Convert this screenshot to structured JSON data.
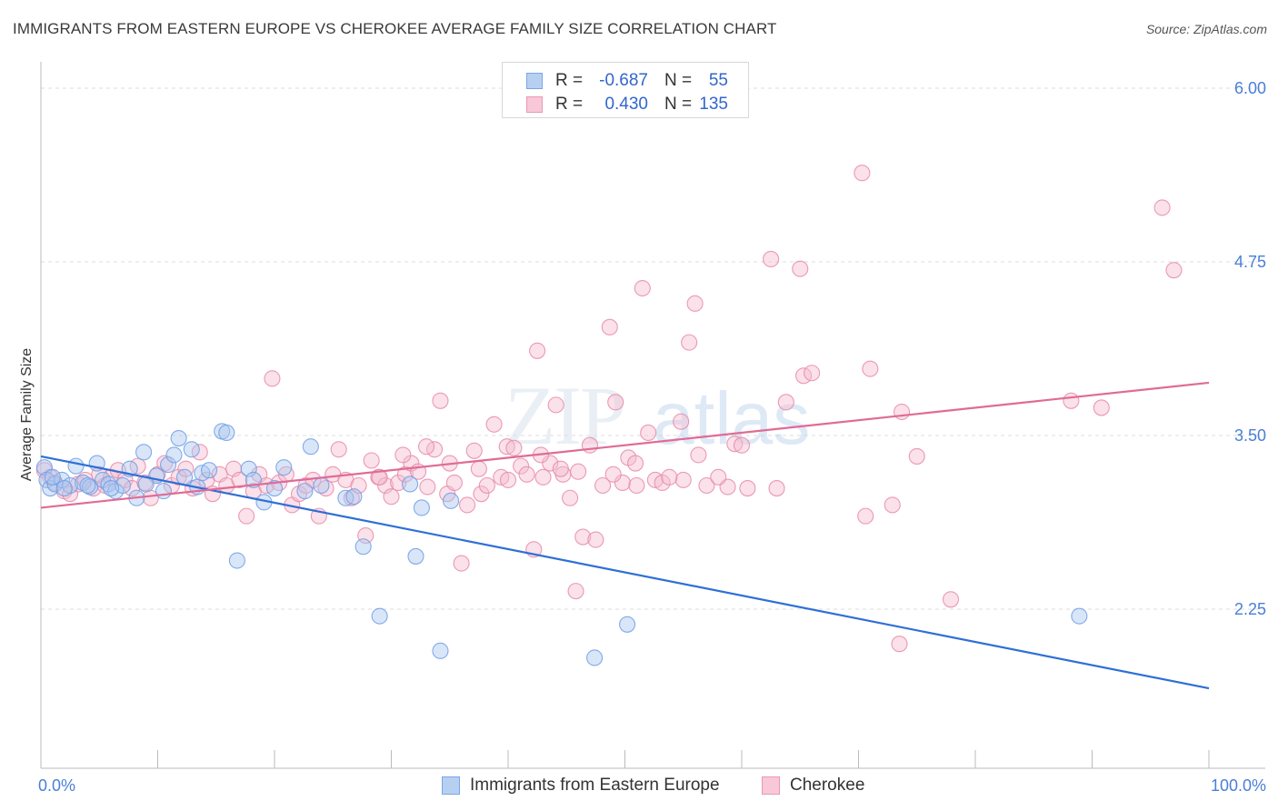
{
  "title": "IMMIGRANTS FROM EASTERN EUROPE VS CHEROKEE AVERAGE FAMILY SIZE CORRELATION CHART",
  "source": "Source: ZipAtlas.com",
  "watermark": {
    "zip": "ZIP",
    "atlas": "atlas"
  },
  "colors": {
    "blue_fill": "#aac8f0",
    "blue_stroke": "#6d9ee6",
    "blue_line": "#2e6fd6",
    "pink_fill": "#f5bcd0",
    "pink_stroke": "#e889a8",
    "pink_line": "#e06b95",
    "grid": "#dddddd",
    "axis_text": "#4a7fd6"
  },
  "stats": [
    {
      "r_label": "R =",
      "r_value": "-0.687",
      "n_label": "N =",
      "n_value": "55",
      "color": "blue"
    },
    {
      "r_label": "R =",
      "r_value": "0.430",
      "n_label": "N =",
      "n_value": "135",
      "color": "pink"
    }
  ],
  "legend": [
    {
      "label": "Immigrants from Eastern Europe",
      "color": "blue"
    },
    {
      "label": "Cherokee",
      "color": "pink"
    }
  ],
  "chart_data": {
    "type": "scatter",
    "title": "IMMIGRANTS FROM EASTERN EUROPE VS CHEROKEE AVERAGE FAMILY SIZE CORRELATION CHART",
    "xlabel": "",
    "ylabel": "Average Family Size",
    "xlim": [
      0,
      100
    ],
    "ylim": [
      1.0,
      6.2
    ],
    "x_tick_labels": [
      "0.0%",
      "100.0%"
    ],
    "y_ticks": [
      2.25,
      3.5,
      4.75,
      6.0
    ],
    "y_tick_labels": [
      "2.25",
      "3.50",
      "4.75",
      "6.00"
    ],
    "grid": true,
    "legend_position": "bottom-center",
    "series": [
      {
        "name": "Immigrants from Eastern Europe",
        "color": "blue",
        "trend": {
          "x": [
            0,
            100
          ],
          "y": [
            3.35,
            1.68
          ]
        },
        "points": [
          [
            0.3,
            3.27
          ],
          [
            0.5,
            3.18
          ],
          [
            0.8,
            3.12
          ],
          [
            1.2,
            3.15
          ],
          [
            1.8,
            3.18
          ],
          [
            2.5,
            3.14
          ],
          [
            3.0,
            3.28
          ],
          [
            3.6,
            3.16
          ],
          [
            4.2,
            3.13
          ],
          [
            4.8,
            3.3
          ],
          [
            5.3,
            3.18
          ],
          [
            5.8,
            3.15
          ],
          [
            6.4,
            3.1
          ],
          [
            7.0,
            3.14
          ],
          [
            7.6,
            3.26
          ],
          [
            8.2,
            3.05
          ],
          [
            8.8,
            3.38
          ],
          [
            9.9,
            3.21
          ],
          [
            10.9,
            3.29
          ],
          [
            11.4,
            3.36
          ],
          [
            11.8,
            3.48
          ],
          [
            12.3,
            3.2
          ],
          [
            12.9,
            3.4
          ],
          [
            13.4,
            3.13
          ],
          [
            13.8,
            3.23
          ],
          [
            14.4,
            3.25
          ],
          [
            15.5,
            3.53
          ],
          [
            15.9,
            3.52
          ],
          [
            16.8,
            2.6
          ],
          [
            17.8,
            3.26
          ],
          [
            18.2,
            3.18
          ],
          [
            19.1,
            3.02
          ],
          [
            20.8,
            3.27
          ],
          [
            22.6,
            3.1
          ],
          [
            23.1,
            3.42
          ],
          [
            26.1,
            3.05
          ],
          [
            26.8,
            3.06
          ],
          [
            27.6,
            2.7
          ],
          [
            29.0,
            2.2
          ],
          [
            31.6,
            3.15
          ],
          [
            32.1,
            2.63
          ],
          [
            32.6,
            2.98
          ],
          [
            34.2,
            1.95
          ],
          [
            35.1,
            3.03
          ],
          [
            47.4,
            1.9
          ],
          [
            50.2,
            2.14
          ],
          [
            88.9,
            2.2
          ],
          [
            1.0,
            3.2
          ],
          [
            2.0,
            3.12
          ],
          [
            4.0,
            3.14
          ],
          [
            6.0,
            3.12
          ],
          [
            9.0,
            3.15
          ],
          [
            10.5,
            3.1
          ],
          [
            20.0,
            3.12
          ],
          [
            24.0,
            3.14
          ]
        ]
      },
      {
        "name": "Cherokee",
        "color": "pink",
        "trend": {
          "x": [
            0,
            100
          ],
          "y": [
            2.98,
            3.88
          ]
        },
        "points": [
          [
            0.3,
            3.25
          ],
          [
            0.8,
            3.2
          ],
          [
            1.2,
            3.16
          ],
          [
            2.0,
            3.1
          ],
          [
            2.5,
            3.08
          ],
          [
            3.2,
            3.15
          ],
          [
            3.8,
            3.18
          ],
          [
            4.5,
            3.12
          ],
          [
            5.0,
            3.22
          ],
          [
            5.5,
            3.14
          ],
          [
            6.0,
            3.2
          ],
          [
            6.6,
            3.25
          ],
          [
            7.2,
            3.18
          ],
          [
            7.8,
            3.12
          ],
          [
            8.3,
            3.28
          ],
          [
            8.9,
            3.16
          ],
          [
            9.4,
            3.05
          ],
          [
            10.0,
            3.22
          ],
          [
            10.6,
            3.3
          ],
          [
            11.2,
            3.14
          ],
          [
            11.8,
            3.2
          ],
          [
            12.4,
            3.26
          ],
          [
            13.0,
            3.12
          ],
          [
            13.6,
            3.38
          ],
          [
            14.2,
            3.18
          ],
          [
            14.7,
            3.08
          ],
          [
            15.3,
            3.22
          ],
          [
            15.9,
            3.14
          ],
          [
            16.5,
            3.26
          ],
          [
            17.0,
            3.18
          ],
          [
            17.6,
            2.92
          ],
          [
            18.2,
            3.1
          ],
          [
            18.7,
            3.22
          ],
          [
            19.3,
            3.14
          ],
          [
            19.8,
            3.91
          ],
          [
            20.4,
            3.16
          ],
          [
            21.0,
            3.22
          ],
          [
            21.5,
            3.0
          ],
          [
            22.1,
            3.08
          ],
          [
            22.7,
            3.14
          ],
          [
            23.3,
            3.18
          ],
          [
            23.8,
            2.92
          ],
          [
            24.4,
            3.12
          ],
          [
            25.0,
            3.22
          ],
          [
            25.5,
            3.4
          ],
          [
            26.1,
            3.18
          ],
          [
            26.6,
            3.05
          ],
          [
            27.2,
            3.14
          ],
          [
            27.8,
            2.78
          ],
          [
            28.3,
            3.32
          ],
          [
            28.9,
            3.2
          ],
          [
            29.5,
            3.14
          ],
          [
            30.0,
            3.06
          ],
          [
            30.6,
            3.16
          ],
          [
            31.2,
            3.22
          ],
          [
            31.7,
            3.3
          ],
          [
            32.3,
            3.24
          ],
          [
            33.1,
            3.13
          ],
          [
            33.7,
            3.4
          ],
          [
            34.2,
            3.75
          ],
          [
            34.8,
            3.08
          ],
          [
            35.4,
            3.16
          ],
          [
            36.0,
            2.58
          ],
          [
            36.5,
            3.0
          ],
          [
            37.1,
            3.39
          ],
          [
            37.7,
            3.08
          ],
          [
            38.2,
            3.14
          ],
          [
            38.8,
            3.58
          ],
          [
            39.4,
            3.2
          ],
          [
            39.9,
            3.42
          ],
          [
            40.5,
            3.41
          ],
          [
            41.1,
            3.28
          ],
          [
            41.6,
            3.22
          ],
          [
            42.2,
            2.68
          ],
          [
            42.5,
            4.11
          ],
          [
            43.0,
            3.2
          ],
          [
            43.6,
            3.3
          ],
          [
            44.1,
            3.72
          ],
          [
            44.7,
            3.22
          ],
          [
            45.3,
            3.05
          ],
          [
            45.8,
            2.38
          ],
          [
            46.4,
            2.77
          ],
          [
            47.0,
            3.43
          ],
          [
            47.5,
            2.75
          ],
          [
            48.1,
            3.14
          ],
          [
            48.7,
            4.28
          ],
          [
            49.2,
            3.74
          ],
          [
            49.8,
            3.16
          ],
          [
            50.3,
            3.34
          ],
          [
            50.9,
            3.3
          ],
          [
            51.5,
            4.56
          ],
          [
            52.0,
            3.52
          ],
          [
            52.6,
            3.18
          ],
          [
            53.2,
            3.16
          ],
          [
            54.8,
            3.6
          ],
          [
            55.5,
            4.17
          ],
          [
            56.0,
            4.45
          ],
          [
            56.3,
            3.36
          ],
          [
            57.0,
            3.14
          ],
          [
            58.8,
            3.13
          ],
          [
            59.4,
            3.44
          ],
          [
            60.0,
            3.43
          ],
          [
            62.5,
            4.77
          ],
          [
            63.8,
            3.74
          ],
          [
            65.0,
            4.7
          ],
          [
            65.3,
            3.93
          ],
          [
            66.0,
            3.95
          ],
          [
            70.3,
            5.39
          ],
          [
            70.6,
            2.92
          ],
          [
            71.0,
            3.98
          ],
          [
            72.9,
            3.0
          ],
          [
            73.7,
            3.67
          ],
          [
            75.0,
            3.35
          ],
          [
            73.5,
            2.0
          ],
          [
            77.9,
            2.32
          ],
          [
            88.2,
            3.75
          ],
          [
            90.8,
            3.7
          ],
          [
            96.0,
            5.14
          ],
          [
            97.0,
            4.69
          ],
          [
            63.0,
            3.12
          ],
          [
            60.5,
            3.12
          ],
          [
            58.0,
            3.2
          ],
          [
            55.0,
            3.18
          ],
          [
            53.8,
            3.2
          ],
          [
            51.0,
            3.14
          ],
          [
            49.0,
            3.22
          ],
          [
            46.0,
            3.24
          ],
          [
            44.5,
            3.26
          ],
          [
            42.8,
            3.36
          ],
          [
            40.0,
            3.18
          ],
          [
            37.5,
            3.26
          ],
          [
            35.0,
            3.3
          ],
          [
            33.0,
            3.42
          ],
          [
            31.0,
            3.36
          ],
          [
            29.0,
            3.2
          ]
        ]
      }
    ]
  }
}
